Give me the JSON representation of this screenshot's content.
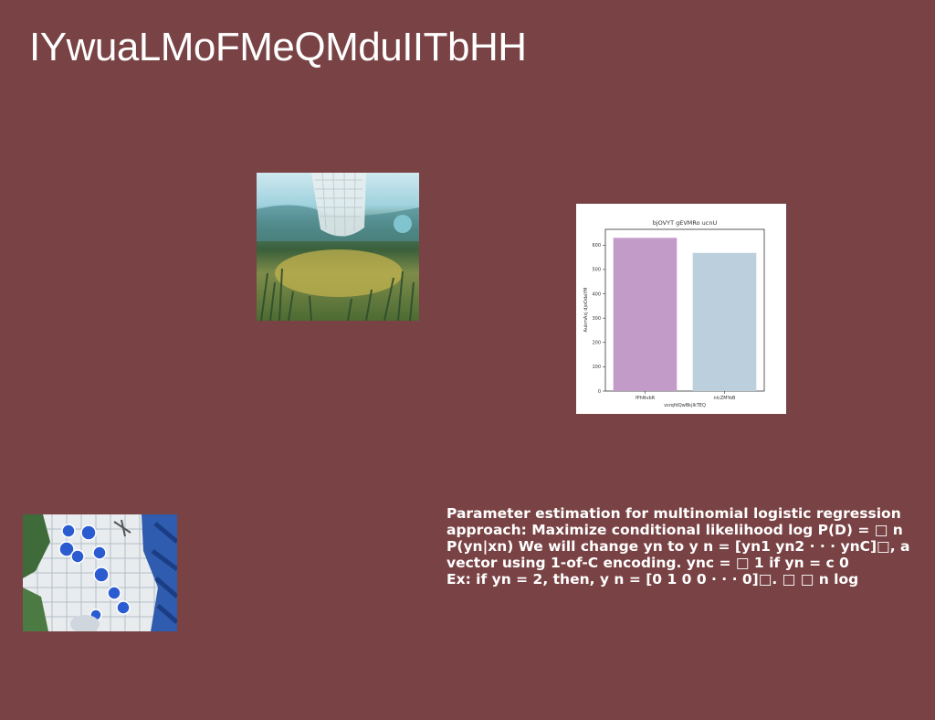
{
  "page": {
    "title": "IYwuaLMoFMeQMduIITbHH",
    "background": "#794244"
  },
  "images": {
    "scene": {
      "icon": "landscape-image"
    },
    "tiles": {
      "icon": "tiled-floor-image"
    }
  },
  "chart_data": {
    "type": "bar",
    "title": "bjOVYT gEVMRo ucnU",
    "xlabel": "vsrqfdQwBkjlkTEQ",
    "ylabel": "AukmAxj djoOdaYM",
    "categories": [
      "fPhNvbR",
      "nlcZMYoB"
    ],
    "values": [
      630,
      568
    ],
    "colors": [
      "#c39bc9",
      "#bbcfdc"
    ],
    "yticks": [
      0,
      100,
      200,
      300,
      400,
      500,
      600
    ],
    "ylim": [
      0,
      665
    ],
    "grid": false
  },
  "body_text": {
    "lines": [
      "Parameter estimation for multinomial logistic regression",
      "approach: Maximize conditional likelihood log P(D) = □ n",
      "P(yn|xn) We will change yn to y n = [yn1 yn2 · · · ynC]□, a",
      "vector using 1-of-C encoding. ync = □ 1 if yn = c 0",
      "Ex: if yn = 2, then, y n = [0 1 0 0 · · · 0]□. □ □ n log"
    ]
  }
}
